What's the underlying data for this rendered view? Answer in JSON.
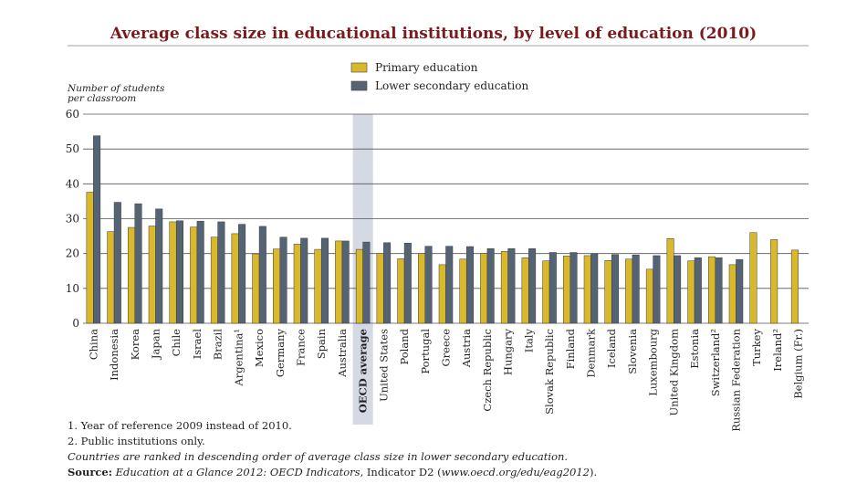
{
  "chart_data": {
    "type": "bar",
    "title": "Average class size in educational institutions, by level of education (2010)",
    "ylabel": [
      "Number of students",
      "per classroom"
    ],
    "ylim": [
      0,
      60
    ],
    "yticks": [
      0,
      10,
      20,
      30,
      40,
      50,
      60
    ],
    "grid": true,
    "legend_position": "top",
    "highlighted_category": "OECD average",
    "categories": [
      "China",
      "Indonesia",
      "Korea",
      "Japan",
      "Chile",
      "Israel",
      "Brazil",
      "Argentina¹",
      "Mexico",
      "Germany",
      "France",
      "Spain",
      "Australia",
      "OECD average",
      "United States",
      "Poland",
      "Portugal",
      "Greece",
      "Austria",
      "Czech Republic",
      "Hungary",
      "Italy",
      "Slovak Republic",
      "Finland",
      "Denmark",
      "Iceland",
      "Slovenia",
      "Luxembourg",
      "United Kingdom",
      "Estonia",
      "Switzerland²",
      "Russian Federation",
      "Turkey",
      "Ireland²",
      "Belgium (Fr.)"
    ],
    "series": [
      {
        "name": "Primary education",
        "color": "#d9b82c",
        "values": [
          37.6,
          26.3,
          27.5,
          27.9,
          29.1,
          27.6,
          24.7,
          25.7,
          19.9,
          21.3,
          22.7,
          21.2,
          23.6,
          21.2,
          20.0,
          18.5,
          20.0,
          16.8,
          18.4,
          20.0,
          20.6,
          18.8,
          17.9,
          19.3,
          19.4,
          18.0,
          18.4,
          15.5,
          24.3,
          17.9,
          19.1,
          16.8,
          26.0,
          24.0,
          21.0
        ]
      },
      {
        "name": "Lower secondary education",
        "color": "#556474",
        "values": [
          53.8,
          34.7,
          34.3,
          32.8,
          29.4,
          29.3,
          29.1,
          28.4,
          27.8,
          24.7,
          24.4,
          24.4,
          23.6,
          23.3,
          23.1,
          23.0,
          22.1,
          22.1,
          22.0,
          21.4,
          21.4,
          21.4,
          20.3,
          20.3,
          20.0,
          19.7,
          19.6,
          19.4,
          19.4,
          18.8,
          18.8,
          18.3,
          null,
          null,
          null
        ]
      }
    ]
  },
  "notes": {
    "note1": "1. Year of reference 2009 instead of 2010.",
    "note2": "2. Public institutions only.",
    "ranking": "Countries are ranked in descending order of average class size in lower secondary education.",
    "source_label": "Source:",
    "source_title": "Education at a Glance 2012: OECD Indicators",
    "source_mid": ", Indicator D2 (",
    "source_url": "www.oecd.org/edu/eag2012",
    "source_end": ")."
  },
  "colors": {
    "title": "#7a1a1d",
    "primary": "#d9b82c",
    "secondary": "#556474",
    "highlight": "#d5d9e3",
    "rule": "#a0a0a0"
  }
}
